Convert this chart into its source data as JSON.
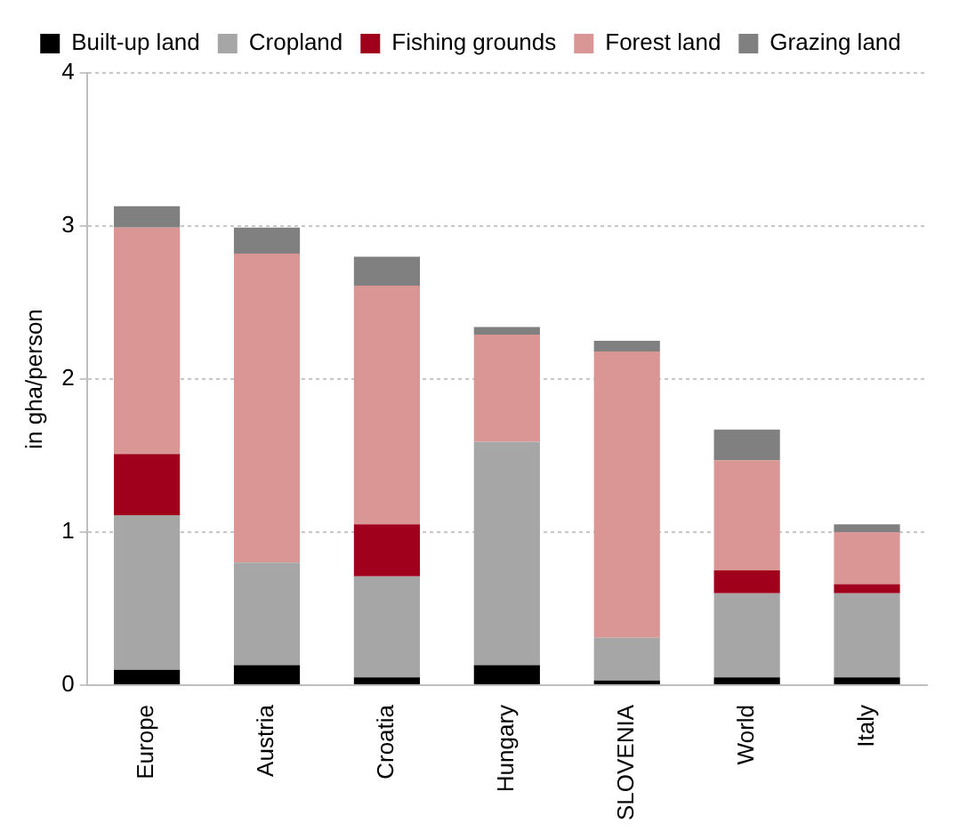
{
  "chart_data": {
    "type": "bar",
    "stacked": true,
    "ylabel": "in gha/person",
    "categories": [
      "Europe",
      "Austria",
      "Croatia",
      "Hungary",
      "SLOVENIA",
      "World",
      "Italy"
    ],
    "series": [
      {
        "name": "Built-up land",
        "color": "#000000",
        "values": [
          0.1,
          0.13,
          0.05,
          0.13,
          0.03,
          0.05,
          0.05
        ]
      },
      {
        "name": "Cropland",
        "color": "#a6a6a6",
        "values": [
          1.01,
          0.67,
          0.66,
          1.46,
          0.28,
          0.55,
          0.55
        ]
      },
      {
        "name": "Fishing grounds",
        "color": "#a0001c",
        "values": [
          0.4,
          0,
          0.34,
          0,
          0,
          0.15,
          0.06
        ]
      },
      {
        "name": "Forest land",
        "color": "#d99694",
        "values": [
          1.48,
          2.02,
          1.56,
          0.7,
          1.87,
          0.72,
          0.34
        ]
      },
      {
        "name": "Grazing land",
        "color": "#808080",
        "values": [
          0.14,
          0.17,
          0.19,
          0.05,
          0.07,
          0.2,
          0.05
        ]
      }
    ],
    "ylim": [
      0,
      4
    ],
    "yticks": [
      0,
      1,
      2,
      3,
      4
    ],
    "grid": "y",
    "legend": "top"
  }
}
